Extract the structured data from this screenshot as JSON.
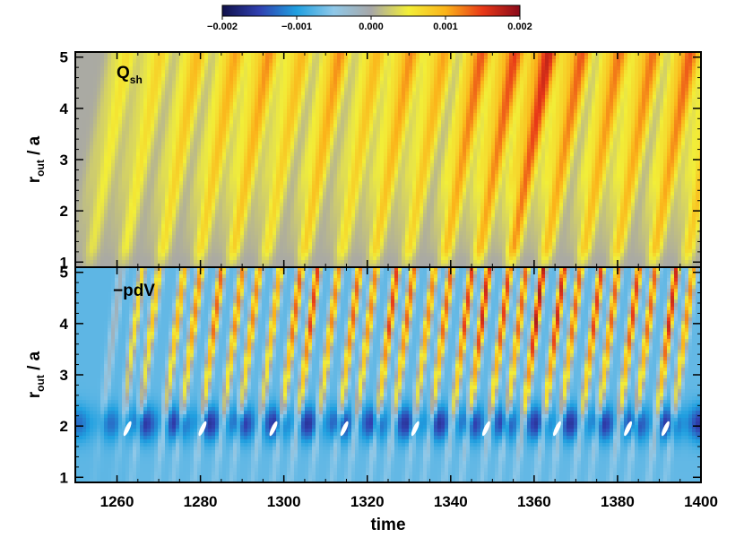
{
  "chart_data": {
    "type": "heatmap",
    "xlabel": "time",
    "xlim": [
      1250,
      1400
    ],
    "x_ticks": [
      1260,
      1280,
      1300,
      1320,
      1340,
      1360,
      1380,
      1400
    ],
    "colorbar": {
      "range": [
        -0.002,
        0.002
      ],
      "ticks": [
        "−0.002",
        "−0.001",
        "0.000",
        "0.001",
        "0.002"
      ],
      "colors": [
        "#10104a",
        "#3040b0",
        "#20a0e0",
        "#8fc8e8",
        "#a7a7a7",
        "#f2ee38",
        "#fbb41a",
        "#e83818",
        "#8a0a1a"
      ]
    },
    "panels": [
      {
        "label_main": "Q",
        "label_sub": "sh",
        "ylabel_main": "r",
        "ylabel_sub": "out",
        "ylabel_rest": " / a",
        "ylim": [
          0.9,
          5.1
        ],
        "y_ticks": [
          "1",
          "2",
          "3",
          "4",
          "5"
        ],
        "y_tick_values": [
          1,
          2,
          3,
          4,
          5
        ],
        "pulse_times": [
          1255,
          1263,
          1272,
          1281,
          1289,
          1297,
          1306,
          1315,
          1323,
          1331,
          1340,
          1348,
          1356,
          1364,
          1373,
          1381,
          1390,
          1398
        ],
        "pulse_amplitudes": [
          0.0006,
          0.0007,
          0.0009,
          0.001,
          0.0011,
          0.0009,
          0.0011,
          0.0009,
          0.0011,
          0.001,
          0.0013,
          0.0014,
          0.0016,
          0.0013,
          0.0012,
          0.0012,
          0.0013,
          0.0011
        ]
      },
      {
        "label_main": "−pdV",
        "label_sub": "",
        "ylabel_main": "r",
        "ylabel_sub": "out",
        "ylabel_rest": " / a",
        "ylim": [
          0.9,
          5.1
        ],
        "y_ticks": [
          "1",
          "2",
          "3",
          "4",
          "5"
        ],
        "y_tick_values": [
          1,
          2,
          3,
          4,
          5
        ],
        "pulse_times": [
          1257,
          1262,
          1266,
          1272,
          1276,
          1281,
          1286,
          1290,
          1295,
          1300,
          1304,
          1309,
          1314,
          1318,
          1323,
          1327,
          1332,
          1336,
          1341,
          1345,
          1350,
          1354,
          1358,
          1363,
          1367,
          1372,
          1376,
          1381,
          1385,
          1390,
          1394
        ],
        "pulse_amplitudes": [
          0.0006,
          0.0009,
          0.001,
          0.0011,
          0.0012,
          0.0013,
          0.0012,
          0.0012,
          0.0011,
          0.0013,
          0.0014,
          0.0012,
          0.0013,
          0.0012,
          0.0014,
          0.0013,
          0.0012,
          0.0013,
          0.0014,
          0.0015,
          0.0014,
          0.0013,
          0.0016,
          0.0015,
          0.0013,
          0.0014,
          0.0013,
          0.0014,
          0.0013,
          0.0015,
          0.0012
        ],
        "blue_band_r": [
          1.7,
          2.4
        ],
        "white_spot_times": [
          1262,
          1280,
          1297,
          1314,
          1331,
          1348,
          1365,
          1382,
          1391
        ]
      }
    ]
  }
}
